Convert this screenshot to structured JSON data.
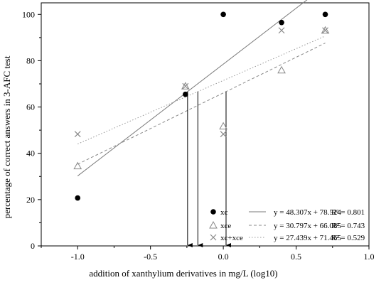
{
  "chart_data": {
    "type": "scatter",
    "xlabel": "addition of xanthylium derivatives in mg/L (log10)",
    "ylabel": "percentage of correct answers in 3-AFC test",
    "xlim": [
      -1.25,
      1.0
    ],
    "ylim": [
      0,
      105
    ],
    "xticks": [
      "-1.0",
      "-0.5",
      "0.0",
      "0.5",
      "1.0"
    ],
    "xtick_values": [
      -1.0,
      -0.5,
      0.0,
      0.5,
      1.0
    ],
    "yticks": [
      "0",
      "20",
      "40",
      "60",
      "80",
      "100"
    ],
    "ytick_values": [
      0,
      20,
      40,
      60,
      80,
      100
    ],
    "grid": false,
    "legend_position": "bottom-right",
    "series": [
      {
        "name": "xc",
        "marker": "filled-circle",
        "x": [
          -1.0,
          -0.26,
          0.0,
          0.4,
          0.7
        ],
        "y": [
          20.7,
          65.5,
          100,
          96.5,
          100
        ],
        "fit": {
          "slope": 48.307,
          "intercept": 78.524,
          "x_range": [
            -1.0,
            0.7
          ],
          "line_style": "solid",
          "color": "#7a7a7a"
        },
        "equation": "y = 48.307x + 78.524",
        "r2": "R² = 0.801"
      },
      {
        "name": "xce",
        "marker": "open-triangle",
        "x": [
          -1.0,
          -0.26,
          0.0,
          0.4,
          0.7
        ],
        "y": [
          34.5,
          69.0,
          51.7,
          75.9,
          93.1
        ],
        "fit": {
          "slope": 30.797,
          "intercept": 66.085,
          "x_range": [
            -1.0,
            0.7
          ],
          "line_style": "dashed",
          "color": "#888888"
        },
        "equation": "y = 30.797x + 66.085",
        "r2": "R² = 0.743"
      },
      {
        "name": "xc+xce",
        "marker": "x-cross",
        "x": [
          -1.0,
          -0.26,
          0.0,
          0.4,
          0.7
        ],
        "y": [
          48.3,
          69.0,
          48.3,
          93.1,
          93.1
        ],
        "fit": {
          "slope": 27.439,
          "intercept": 71.465,
          "x_range": [
            -1.0,
            0.7
          ],
          "line_style": "dotted",
          "color": "#999999"
        },
        "equation": "y = 27.439x + 71.465",
        "r2": "R² = 0.529"
      }
    ],
    "annotations": [
      {
        "kind": "threshold-arrow",
        "series": "xc",
        "y": 66.67,
        "x": -0.2453
      },
      {
        "kind": "threshold-arrow",
        "series": "xc+xce",
        "y": 66.67,
        "x": -0.1748
      },
      {
        "kind": "threshold-arrow",
        "series": "xce",
        "y": 66.67,
        "x": 0.0189
      }
    ]
  },
  "colors": {
    "axis": "#000000",
    "marker": "#000000",
    "open_marker": "#888888",
    "arrow": "#000000"
  }
}
